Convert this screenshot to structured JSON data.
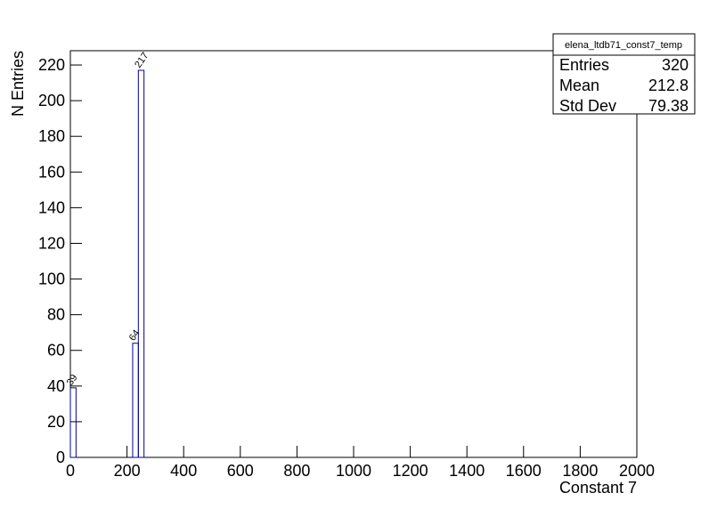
{
  "chart_data": {
    "type": "histogram",
    "x_label": "Constant 7",
    "y_label": "N Entries",
    "bins": [
      0,
      20,
      40,
      60,
      80,
      100,
      120,
      140,
      160,
      180,
      200,
      220,
      240,
      260,
      280,
      300,
      320,
      340,
      360,
      380,
      400,
      420,
      440,
      460,
      480,
      500,
      520,
      540,
      560,
      580,
      600,
      620,
      640,
      660,
      680,
      700,
      720,
      740,
      760,
      780,
      800,
      820,
      840,
      860,
      880,
      900,
      920,
      940,
      960,
      980,
      1000,
      1020,
      1040,
      1060,
      1080,
      1100,
      1120,
      1140,
      1160,
      1180,
      1200,
      1220,
      1240,
      1260,
      1280,
      1300,
      1320,
      1340,
      1360,
      1380,
      1400,
      1420,
      1440,
      1460,
      1480,
      1500,
      1520,
      1540,
      1560,
      1580,
      1600,
      1620,
      1640,
      1660,
      1680,
      1700,
      1720,
      1740,
      1760,
      1780,
      1800,
      1820,
      1840,
      1860,
      1880,
      1900,
      1920,
      1940,
      1960,
      1980,
      2000
    ],
    "counts": [
      39,
      0,
      0,
      0,
      0,
      0,
      0,
      0,
      0,
      0,
      0,
      64,
      217,
      0,
      0,
      0,
      0,
      0,
      0,
      0,
      0,
      0,
      0,
      0,
      0,
      0,
      0,
      0,
      0,
      0,
      0,
      0,
      0,
      0,
      0,
      0,
      0,
      0,
      0,
      0,
      0,
      0,
      0,
      0,
      0,
      0,
      0,
      0,
      0,
      0,
      0,
      0,
      0,
      0,
      0,
      0,
      0,
      0,
      0,
      0,
      0,
      0,
      0,
      0,
      0,
      0,
      0,
      0,
      0,
      0,
      0,
      0,
      0,
      0,
      0,
      0,
      0,
      0,
      0,
      0,
      0,
      0,
      0,
      0,
      0,
      0,
      0,
      0,
      0,
      0,
      0,
      0,
      0,
      0,
      0,
      0,
      0,
      0,
      0,
      0
    ],
    "color": "#000099",
    "xlim": [
      0,
      2000
    ],
    "xticks": [
      0,
      200,
      400,
      600,
      800,
      1000,
      1200,
      1400,
      1600,
      1800,
      2000
    ],
    "ylim": [
      0,
      228
    ],
    "yticks": [
      0,
      20,
      40,
      60,
      80,
      100,
      120,
      140,
      160,
      180,
      200,
      220
    ],
    "stats": {
      "title": "elena_ltdb71_const7_temp",
      "rows": [
        {
          "label": "Entries",
          "value": 320
        },
        {
          "label": "Mean",
          "value": 212.8
        },
        {
          "label": "Std Dev",
          "value": 79.38
        }
      ]
    }
  }
}
